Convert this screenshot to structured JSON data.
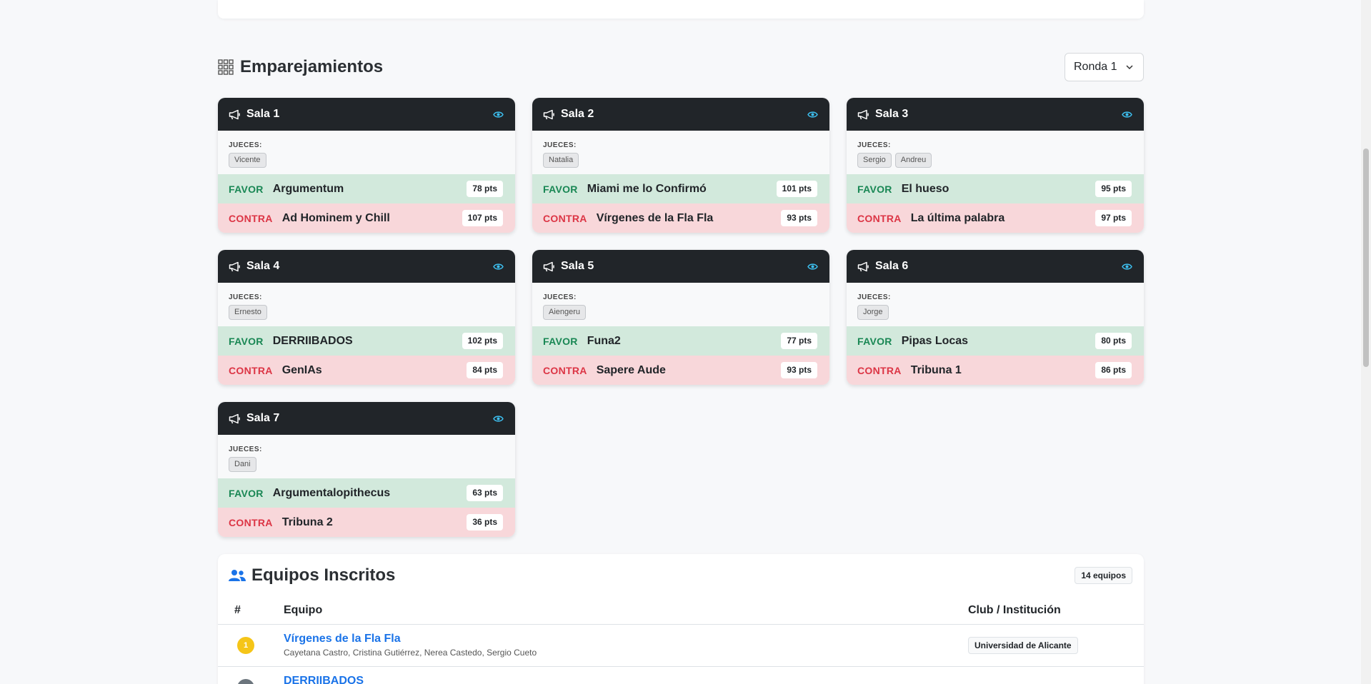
{
  "pairings": {
    "title": "Emparejamientos",
    "round_select": "Ronda 1",
    "judges_label": "JUECES:",
    "favor_label": "FAVOR",
    "contra_label": "CONTRA",
    "rooms": [
      {
        "name": "Sala 1",
        "judges": [
          "Vicente"
        ],
        "favor": {
          "team": "Argumentum",
          "points": "78 pts"
        },
        "contra": {
          "team": "Ad Hominem y Chill",
          "points": "107 pts"
        }
      },
      {
        "name": "Sala 2",
        "judges": [
          "Natalia"
        ],
        "favor": {
          "team": "Miami me lo Confirmó",
          "points": "101 pts"
        },
        "contra": {
          "team": "Vírgenes de la Fla Fla",
          "points": "93 pts"
        }
      },
      {
        "name": "Sala 3",
        "judges": [
          "Sergio",
          "Andreu"
        ],
        "favor": {
          "team": "El hueso",
          "points": "95 pts"
        },
        "contra": {
          "team": "La última palabra",
          "points": "97 pts"
        }
      },
      {
        "name": "Sala 4",
        "judges": [
          "Ernesto"
        ],
        "favor": {
          "team": "DERRIIBADOS",
          "points": "102 pts"
        },
        "contra": {
          "team": "GenIAs",
          "points": "84 pts"
        }
      },
      {
        "name": "Sala 5",
        "judges": [
          "Aiengeru"
        ],
        "favor": {
          "team": "Funa2",
          "points": "77 pts"
        },
        "contra": {
          "team": "Sapere Aude",
          "points": "93 pts"
        }
      },
      {
        "name": "Sala 6",
        "judges": [
          "Jorge"
        ],
        "favor": {
          "team": "Pipas Locas",
          "points": "80 pts"
        },
        "contra": {
          "team": "Tribuna 1",
          "points": "86 pts"
        }
      },
      {
        "name": "Sala 7",
        "judges": [
          "Dani"
        ],
        "favor": {
          "team": "Argumentalopithecus",
          "points": "63 pts"
        },
        "contra": {
          "team": "Tribuna 2",
          "points": "36 pts"
        }
      }
    ]
  },
  "teams": {
    "title": "Equipos Inscritos",
    "count": "14 equipos",
    "columns": {
      "num": "#",
      "team": "Equipo",
      "club": "Club / Institución"
    },
    "rows": [
      {
        "rank": "1",
        "name": "Vírgenes de la Fla Fla",
        "members": "Cayetana Castro, Cristina Gutiérrez, Nerea Castedo, Sergio Cueto",
        "club": "Universidad de Alicante"
      },
      {
        "rank": "",
        "name": "DERRIIBADOS",
        "members": "",
        "club": ""
      }
    ]
  },
  "colors": {
    "header_dark": "#212529",
    "favor_bg": "#d2e9dc",
    "contra_bg": "#f8d7da",
    "favor_text": "#198754",
    "contra_text": "#dc3545",
    "link": "#1a73e8",
    "gold": "#f5c518"
  },
  "icons": {
    "section": "grid-icon",
    "room": "megaphone-icon",
    "view": "eye-icon",
    "teams": "people-icon",
    "select": "chevron-down-icon"
  }
}
